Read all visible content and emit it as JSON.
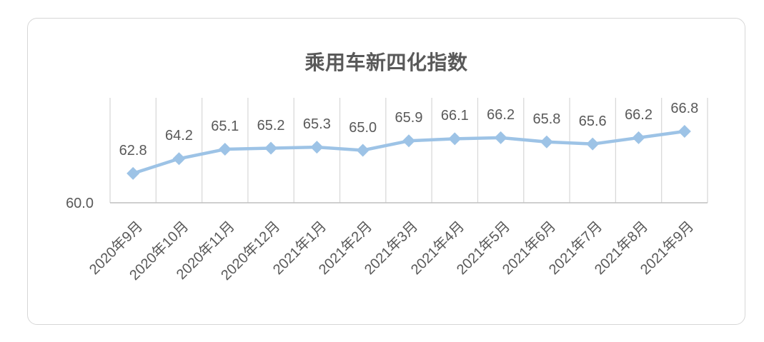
{
  "page": {
    "background": "#ffffff"
  },
  "card": {
    "background": "#ffffff",
    "border_color": "#d7d7d7"
  },
  "chart_data": {
    "type": "line",
    "title": "乘用车新四化指数",
    "categories": [
      "2020年9月",
      "2020年10月",
      "2020年11月",
      "2020年12月",
      "2021年1月",
      "2021年2月",
      "2021年3月",
      "2021年4月",
      "2021年5月",
      "2021年6月",
      "2021年7月",
      "2021年8月",
      "2021年9月"
    ],
    "values": [
      62.8,
      64.2,
      65.1,
      65.2,
      65.3,
      65.0,
      65.9,
      66.1,
      66.2,
      65.8,
      65.6,
      66.2,
      66.8
    ],
    "data_labels": [
      "62.8",
      "64.2",
      "65.1",
      "65.2",
      "65.3",
      "65.0",
      "65.9",
      "66.1",
      "66.2",
      "65.8",
      "65.6",
      "66.2",
      "66.8"
    ],
    "xlabel": "",
    "ylabel": "",
    "ylim": [
      60.0,
      70.0
    ],
    "y_tick_labels": [
      "60.0"
    ],
    "legend": "none",
    "grid": "vertical-only",
    "marker_shape": "diamond",
    "colors": {
      "line": "#9dc3e6",
      "marker": "#9dc3e6",
      "title_text": "#595959",
      "label_text": "#595959",
      "axis_text": "#595959",
      "gridline": "#d9d9d9",
      "axis_line": "#bfbfbf"
    }
  }
}
